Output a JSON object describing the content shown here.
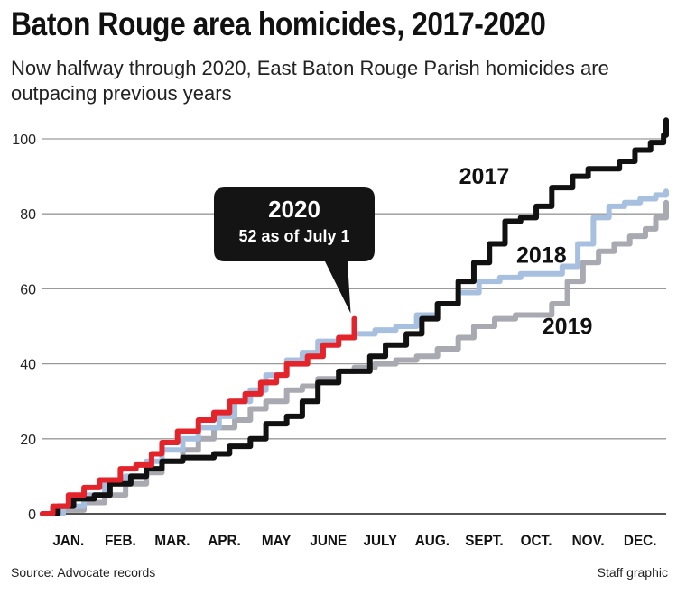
{
  "title": "Baton Rouge area homicides, 2017-2020",
  "subtitle": "Now halfway through 2020, East Baton Rouge Parish homicides are outpacing previous years",
  "source": "Source: Advocate records",
  "credit": "Staff graphic",
  "callout": {
    "year": "2020",
    "note": "52 as of July 1"
  },
  "colors": {
    "2017": "#111111",
    "2018": "#a8c0e0",
    "2019": "#a9a9b1",
    "2020": "#e3242b",
    "grid": "#9a9a9a",
    "callout_bg": "#141414"
  },
  "chart_data": {
    "type": "line",
    "title": "Baton Rouge area homicides, 2017-2020",
    "xlabel": "",
    "ylabel": "",
    "categories": [
      "JAN.",
      "FEB.",
      "MAR.",
      "APR.",
      "MAY",
      "JUNE",
      "JULY",
      "AUG.",
      "SEPT.",
      "OCT.",
      "NOV.",
      "DEC."
    ],
    "x_unit": "month (0 = Jan. 1, 12 = Dec. 31)",
    "yticks": [
      0,
      20,
      40,
      60,
      80,
      100
    ],
    "ylim": [
      0,
      105
    ],
    "xlim": [
      0,
      12
    ],
    "grid": true,
    "series": [
      {
        "name": "2017",
        "color": "#111111",
        "label_at": [
          8.5,
          88
        ],
        "points": [
          [
            0,
            0
          ],
          [
            0.3,
            2
          ],
          [
            0.6,
            4
          ],
          [
            1,
            5
          ],
          [
            1.3,
            8
          ],
          [
            1.7,
            10
          ],
          [
            2,
            12
          ],
          [
            2.3,
            14
          ],
          [
            2.7,
            15
          ],
          [
            3,
            15
          ],
          [
            3.3,
            16
          ],
          [
            3.6,
            18
          ],
          [
            4,
            20
          ],
          [
            4.3,
            24
          ],
          [
            4.7,
            26
          ],
          [
            5,
            30
          ],
          [
            5.3,
            35
          ],
          [
            5.7,
            38
          ],
          [
            6,
            38
          ],
          [
            6.3,
            42
          ],
          [
            6.6,
            45
          ],
          [
            7,
            48
          ],
          [
            7.3,
            52
          ],
          [
            7.6,
            56
          ],
          [
            8,
            62
          ],
          [
            8.3,
            67
          ],
          [
            8.6,
            72
          ],
          [
            8.9,
            78
          ],
          [
            9.2,
            79
          ],
          [
            9.5,
            82
          ],
          [
            9.8,
            87
          ],
          [
            10.2,
            90
          ],
          [
            10.5,
            92
          ],
          [
            10.8,
            92
          ],
          [
            11.1,
            94
          ],
          [
            11.4,
            97
          ],
          [
            11.7,
            99
          ],
          [
            11.95,
            101
          ],
          [
            12,
            105
          ]
        ]
      },
      {
        "name": "2018",
        "color": "#a8c0e0",
        "label_at": [
          9.6,
          67
        ],
        "points": [
          [
            0,
            0
          ],
          [
            0.4,
            2
          ],
          [
            0.8,
            5
          ],
          [
            1.2,
            8
          ],
          [
            1.6,
            10
          ],
          [
            2,
            14
          ],
          [
            2.3,
            17
          ],
          [
            2.7,
            20
          ],
          [
            3,
            23
          ],
          [
            3.4,
            26
          ],
          [
            3.7,
            30
          ],
          [
            4,
            33
          ],
          [
            4.3,
            37
          ],
          [
            4.7,
            41
          ],
          [
            5,
            43
          ],
          [
            5.3,
            46
          ],
          [
            5.7,
            47
          ],
          [
            6,
            48
          ],
          [
            6.4,
            49
          ],
          [
            6.8,
            50
          ],
          [
            7.2,
            53
          ],
          [
            7.6,
            56
          ],
          [
            8,
            59
          ],
          [
            8.4,
            62
          ],
          [
            8.8,
            63
          ],
          [
            9.2,
            64
          ],
          [
            9.6,
            64
          ],
          [
            10,
            66
          ],
          [
            10.3,
            72
          ],
          [
            10.6,
            79
          ],
          [
            10.9,
            82
          ],
          [
            11.2,
            83
          ],
          [
            11.5,
            84
          ],
          [
            11.8,
            85
          ],
          [
            12,
            86
          ]
        ]
      },
      {
        "name": "2019",
        "color": "#a9a9b1",
        "label_at": [
          10.1,
          48
        ],
        "points": [
          [
            0,
            0
          ],
          [
            0.4,
            1
          ],
          [
            0.8,
            3
          ],
          [
            1.2,
            5
          ],
          [
            1.6,
            8
          ],
          [
            2,
            11
          ],
          [
            2.3,
            14
          ],
          [
            2.7,
            17
          ],
          [
            3,
            20
          ],
          [
            3.3,
            23
          ],
          [
            3.7,
            25
          ],
          [
            4,
            28
          ],
          [
            4.3,
            30
          ],
          [
            4.7,
            33
          ],
          [
            5,
            34
          ],
          [
            5.3,
            36
          ],
          [
            5.7,
            38
          ],
          [
            6,
            39
          ],
          [
            6.4,
            40
          ],
          [
            6.8,
            41
          ],
          [
            7.2,
            42
          ],
          [
            7.6,
            44
          ],
          [
            8,
            47
          ],
          [
            8.3,
            50
          ],
          [
            8.7,
            52
          ],
          [
            9.1,
            53
          ],
          [
            9.5,
            53
          ],
          [
            9.8,
            56
          ],
          [
            10.1,
            62
          ],
          [
            10.4,
            67
          ],
          [
            10.7,
            70
          ],
          [
            11,
            72
          ],
          [
            11.3,
            74
          ],
          [
            11.6,
            76
          ],
          [
            11.8,
            79
          ],
          [
            12,
            83
          ]
        ]
      },
      {
        "name": "2020",
        "color": "#e3242b",
        "points": [
          [
            0,
            0
          ],
          [
            0.2,
            2
          ],
          [
            0.5,
            5
          ],
          [
            0.8,
            7
          ],
          [
            1.1,
            9
          ],
          [
            1.5,
            12
          ],
          [
            1.8,
            13
          ],
          [
            2.1,
            16
          ],
          [
            2.3,
            19
          ],
          [
            2.6,
            22
          ],
          [
            3,
            25
          ],
          [
            3.3,
            27
          ],
          [
            3.6,
            30
          ],
          [
            3.9,
            32
          ],
          [
            4.2,
            35
          ],
          [
            4.5,
            37
          ],
          [
            4.7,
            40
          ],
          [
            5.1,
            42
          ],
          [
            5.4,
            45
          ],
          [
            5.7,
            47
          ],
          [
            6,
            49
          ],
          [
            6,
            52
          ]
        ]
      }
    ]
  }
}
